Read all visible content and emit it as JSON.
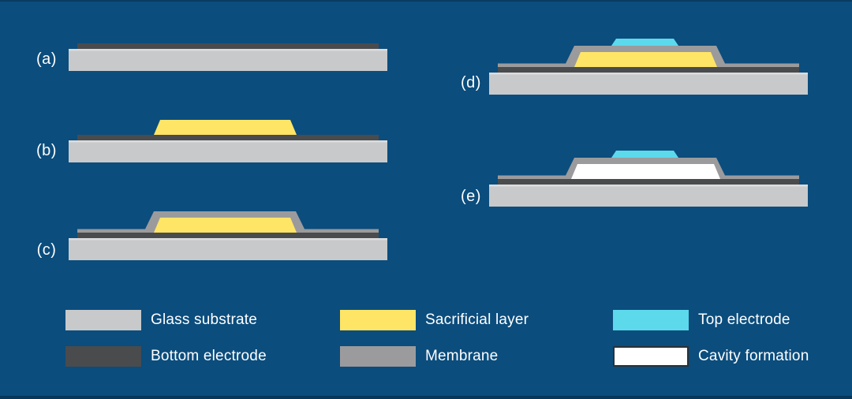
{
  "colors": {
    "background": "#0B4D7D",
    "glass_substrate": "#C8C9CB",
    "glass_substrate_highlight": "#DBDCDE",
    "bottom_electrode": "#4A4B4D",
    "membrane": "#9B9B9D",
    "sacrificial_layer": "#FFE566",
    "top_electrode": "#5DD9EC",
    "cavity": "#FFFFFF",
    "cavity_border": "#2E3033",
    "label_text": "#FFFFFF"
  },
  "steps": [
    {
      "id": "a",
      "label": "(a)",
      "layers": [
        "glass_substrate",
        "bottom_electrode"
      ]
    },
    {
      "id": "b",
      "label": "(b)",
      "layers": [
        "glass_substrate",
        "bottom_electrode",
        "sacrificial_layer"
      ]
    },
    {
      "id": "c",
      "label": "(c)",
      "layers": [
        "glass_substrate",
        "bottom_electrode",
        "membrane",
        "sacrificial_layer"
      ]
    },
    {
      "id": "d",
      "label": "(d)",
      "layers": [
        "glass_substrate",
        "bottom_electrode",
        "membrane",
        "sacrificial_layer",
        "top_electrode"
      ]
    },
    {
      "id": "e",
      "label": "(e)",
      "layers": [
        "glass_substrate",
        "bottom_electrode",
        "membrane",
        "cavity",
        "top_electrode"
      ]
    }
  ],
  "legend": {
    "items": [
      {
        "key": "glass_substrate",
        "label": "Glass substrate"
      },
      {
        "key": "bottom_electrode",
        "label": "Bottom electrode"
      },
      {
        "key": "sacrificial_layer",
        "label": "Sacrificial layer"
      },
      {
        "key": "membrane",
        "label": "Membrane"
      },
      {
        "key": "top_electrode",
        "label": "Top electrode"
      },
      {
        "key": "cavity",
        "label": "Cavity formation",
        "bordered": true
      }
    ]
  }
}
